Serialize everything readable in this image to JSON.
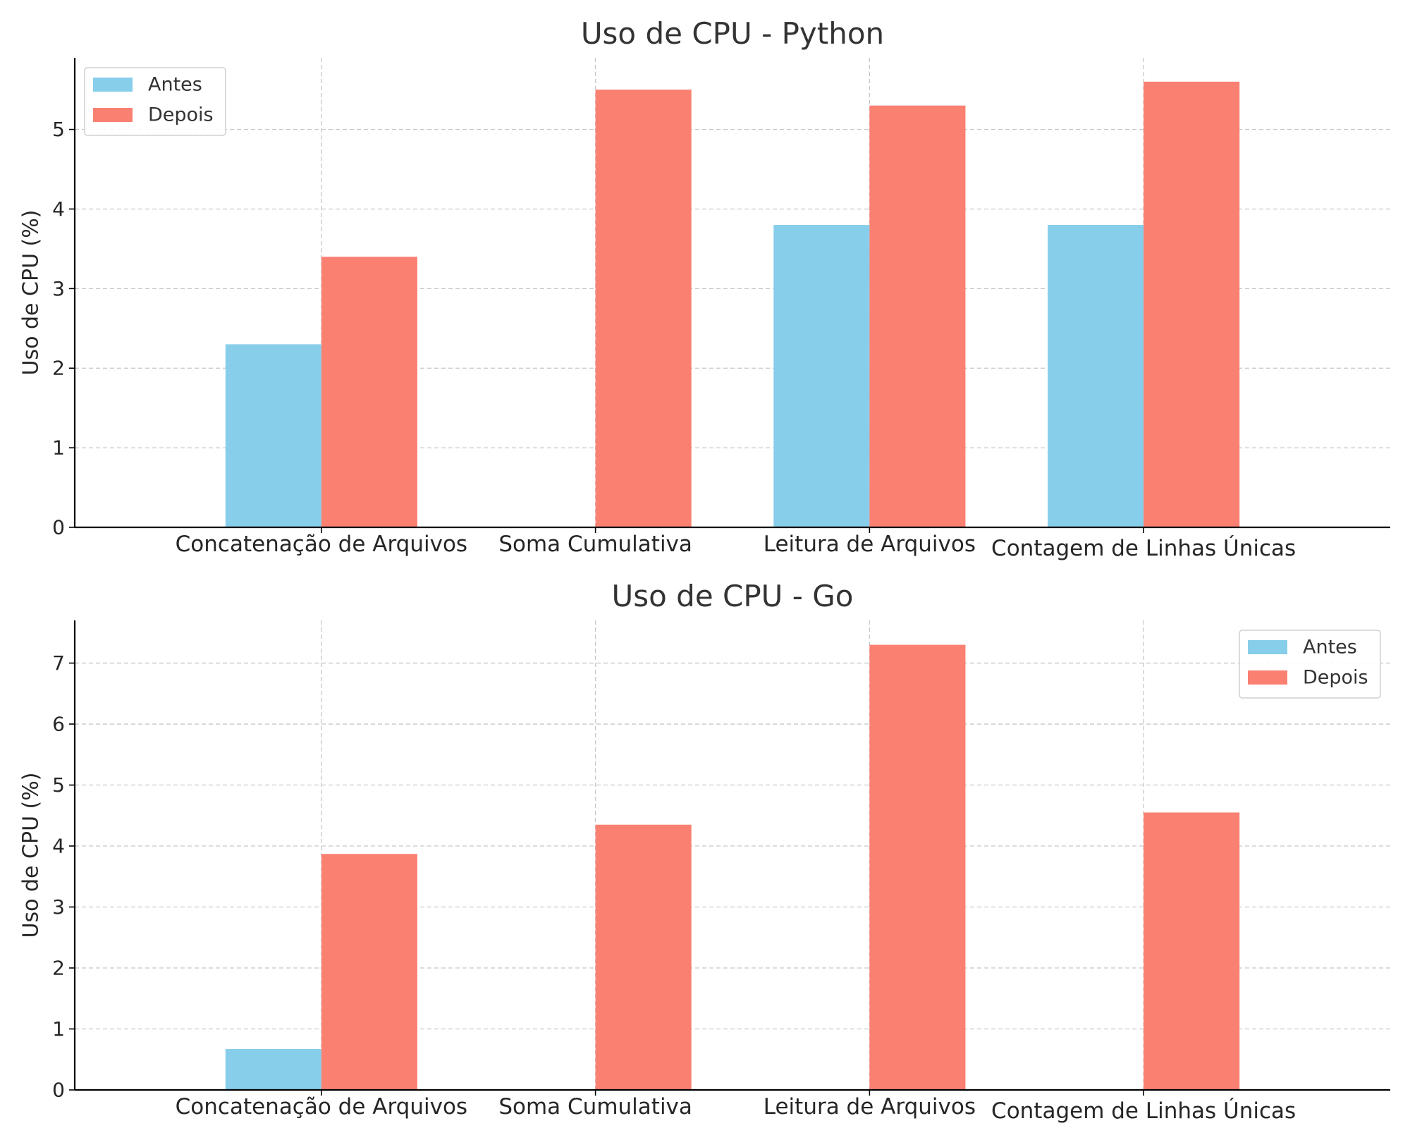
{
  "chart_data": [
    {
      "type": "bar",
      "title": "Uso de CPU - Python",
      "xlabel": "",
      "ylabel": "Uso de CPU (%)",
      "categories": [
        "Concatenação de Arquivos",
        "Soma Cumulativa",
        "Leitura de Arquivos",
        "Contagem de Linhas Únicas"
      ],
      "series": [
        {
          "name": "Antes",
          "values": [
            2.3,
            0,
            3.8,
            3.8
          ],
          "color": "#87ceeb"
        },
        {
          "name": "Depois",
          "values": [
            3.4,
            5.5,
            5.3,
            5.6
          ],
          "color": "#fa8072"
        }
      ],
      "ylim": [
        0,
        5.9
      ],
      "yticks": [
        0,
        1,
        2,
        3,
        4,
        5
      ],
      "grid": true,
      "legend_position": "top-left"
    },
    {
      "type": "bar",
      "title": "Uso de CPU - Go",
      "xlabel": "",
      "ylabel": "Uso de CPU (%)",
      "categories": [
        "Concatenação de Arquivos",
        "Soma Cumulativa",
        "Leitura de Arquivos",
        "Contagem de Linhas Únicas"
      ],
      "series": [
        {
          "name": "Antes",
          "values": [
            0.67,
            0,
            0,
            0
          ],
          "color": "#87ceeb"
        },
        {
          "name": "Depois",
          "values": [
            3.87,
            4.35,
            7.3,
            4.55
          ],
          "color": "#fa8072"
        }
      ],
      "ylim": [
        0,
        7.7
      ],
      "yticks": [
        0,
        1,
        2,
        3,
        4,
        5,
        6,
        7
      ],
      "grid": true,
      "legend_position": "top-right"
    }
  ]
}
